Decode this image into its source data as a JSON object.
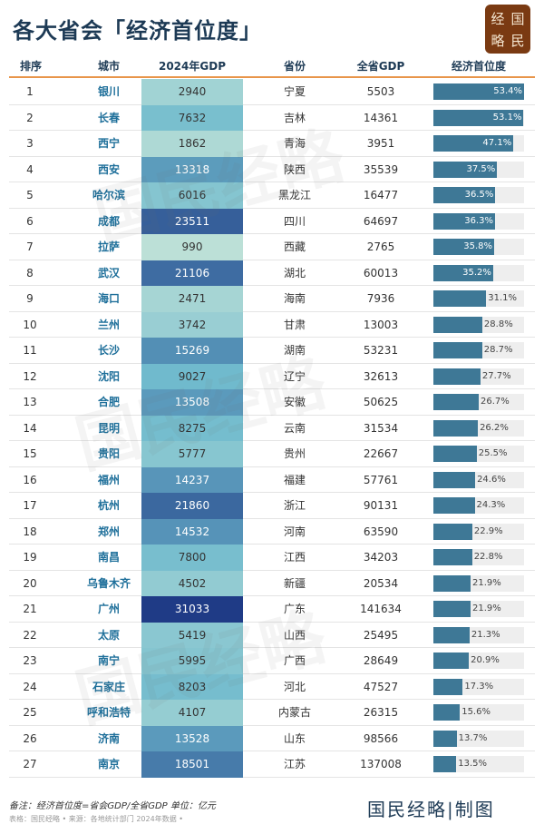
{
  "title": "各大省会「经济首位度」",
  "logo": [
    "经",
    "国",
    "略",
    "民"
  ],
  "headers": [
    "排序",
    "城市",
    "2024年GDP",
    "省份",
    "全省GDP",
    "经济首位度"
  ],
  "rows": [
    [
      1,
      "银川",
      2940,
      "宁夏",
      5503,
      53.4
    ],
    [
      2,
      "长春",
      7632,
      "吉林",
      14361,
      53.1
    ],
    [
      3,
      "西宁",
      1862,
      "青海",
      3951,
      47.1
    ],
    [
      4,
      "西安",
      13318,
      "陕西",
      35539,
      37.5
    ],
    [
      5,
      "哈尔滨",
      6016,
      "黑龙江",
      16477,
      36.5
    ],
    [
      6,
      "成都",
      23511,
      "四川",
      64697,
      36.3
    ],
    [
      7,
      "拉萨",
      990,
      "西藏",
      2765,
      35.8
    ],
    [
      8,
      "武汉",
      21106,
      "湖北",
      60013,
      35.2
    ],
    [
      9,
      "海口",
      2471,
      "海南",
      7936,
      31.1
    ],
    [
      10,
      "兰州",
      3742,
      "甘肃",
      13003,
      28.8
    ],
    [
      11,
      "长沙",
      15269,
      "湖南",
      53231,
      28.7
    ],
    [
      12,
      "沈阳",
      9027,
      "辽宁",
      32613,
      27.7
    ],
    [
      13,
      "合肥",
      13508,
      "安徽",
      50625,
      26.7
    ],
    [
      14,
      "昆明",
      8275,
      "云南",
      31534,
      26.2
    ],
    [
      15,
      "贵阳",
      5777,
      "贵州",
      22667,
      25.5
    ],
    [
      16,
      "福州",
      14237,
      "福建",
      57761,
      24.6
    ],
    [
      17,
      "杭州",
      21860,
      "浙江",
      90131,
      24.3
    ],
    [
      18,
      "郑州",
      14532,
      "河南",
      63590,
      22.9
    ],
    [
      19,
      "南昌",
      7800,
      "江西",
      34203,
      22.8
    ],
    [
      20,
      "乌鲁木齐",
      4502,
      "新疆",
      20534,
      21.9
    ],
    [
      21,
      "广州",
      31033,
      "广东",
      141634,
      21.9
    ],
    [
      22,
      "太原",
      5419,
      "山西",
      25495,
      21.3
    ],
    [
      23,
      "南宁",
      5995,
      "广西",
      28649,
      20.9
    ],
    [
      24,
      "石家庄",
      8203,
      "河北",
      47527,
      17.3
    ],
    [
      25,
      "呼和浩特",
      4107,
      "内蒙古",
      26315,
      15.6
    ],
    [
      26,
      "济南",
      13528,
      "山东",
      98566,
      13.7
    ],
    [
      27,
      "南京",
      18501,
      "江苏",
      137008,
      13.5
    ]
  ],
  "colors": {
    "bar": "#3e7896",
    "header_line": "#e8954a",
    "gdp_low": "#e2f3dc",
    "gdp_high": "#1f3b86"
  },
  "note": "备注：经济首位度=省会GDP/全省GDP 单位：亿元",
  "source": "表格：国民经略 • 来源：各地统计部门 2024年数据 •",
  "brand": "国民经略|制图",
  "watermark": "国民经略"
}
